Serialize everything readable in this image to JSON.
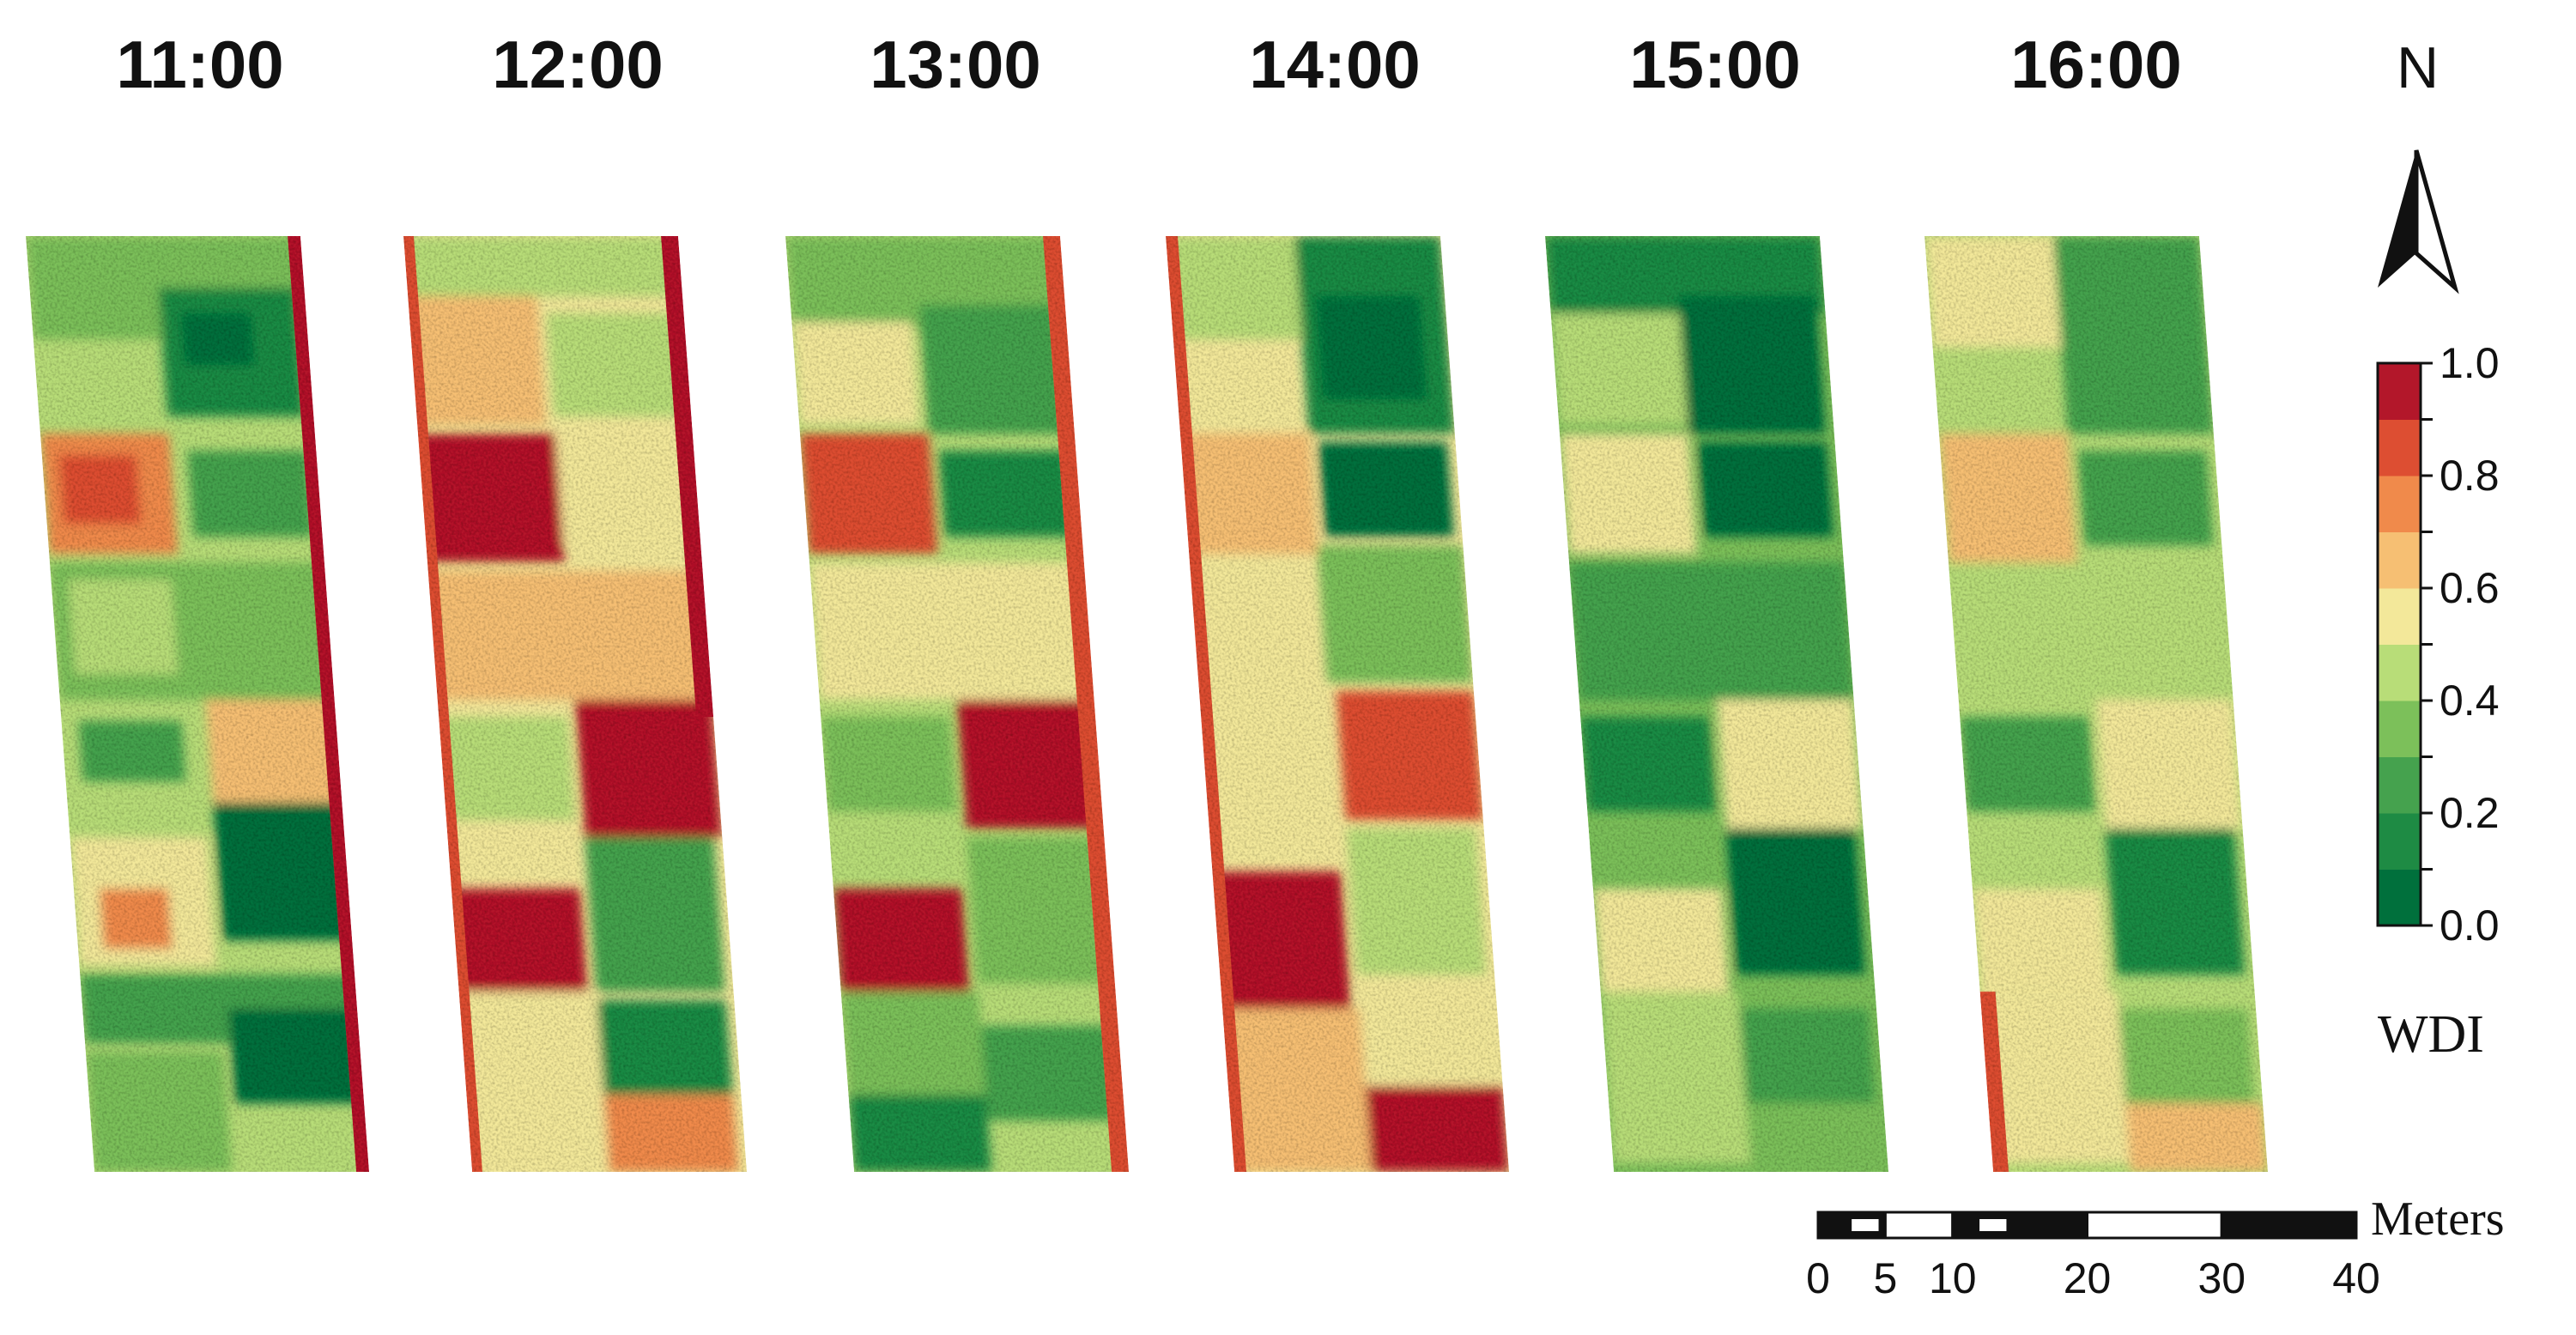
{
  "panels": [
    {
      "time": "11:00"
    },
    {
      "time": "12:00"
    },
    {
      "time": "13:00"
    },
    {
      "time": "14:00"
    },
    {
      "time": "15:00"
    },
    {
      "time": "16:00"
    }
  ],
  "legend": {
    "title": "WDI",
    "tick_labels": [
      "1.0",
      "0.8",
      "0.6",
      "0.4",
      "0.2",
      "0.0"
    ],
    "range": [
      0.0,
      1.0
    ],
    "class_colors": [
      "#00703c",
      "#1e8b44",
      "#45a24e",
      "#7cc05a",
      "#b8dd78",
      "#f3e89a",
      "#f6bf73",
      "#f08a4b",
      "#dd4e32",
      "#b3172a"
    ]
  },
  "north_arrow": {
    "label": "N"
  },
  "scale_bar": {
    "unit": "Meters",
    "tick_labels": [
      "0",
      "5",
      "10",
      "20",
      "30",
      "40"
    ],
    "tick_values": [
      0,
      5,
      10,
      20,
      30,
      40
    ]
  }
}
